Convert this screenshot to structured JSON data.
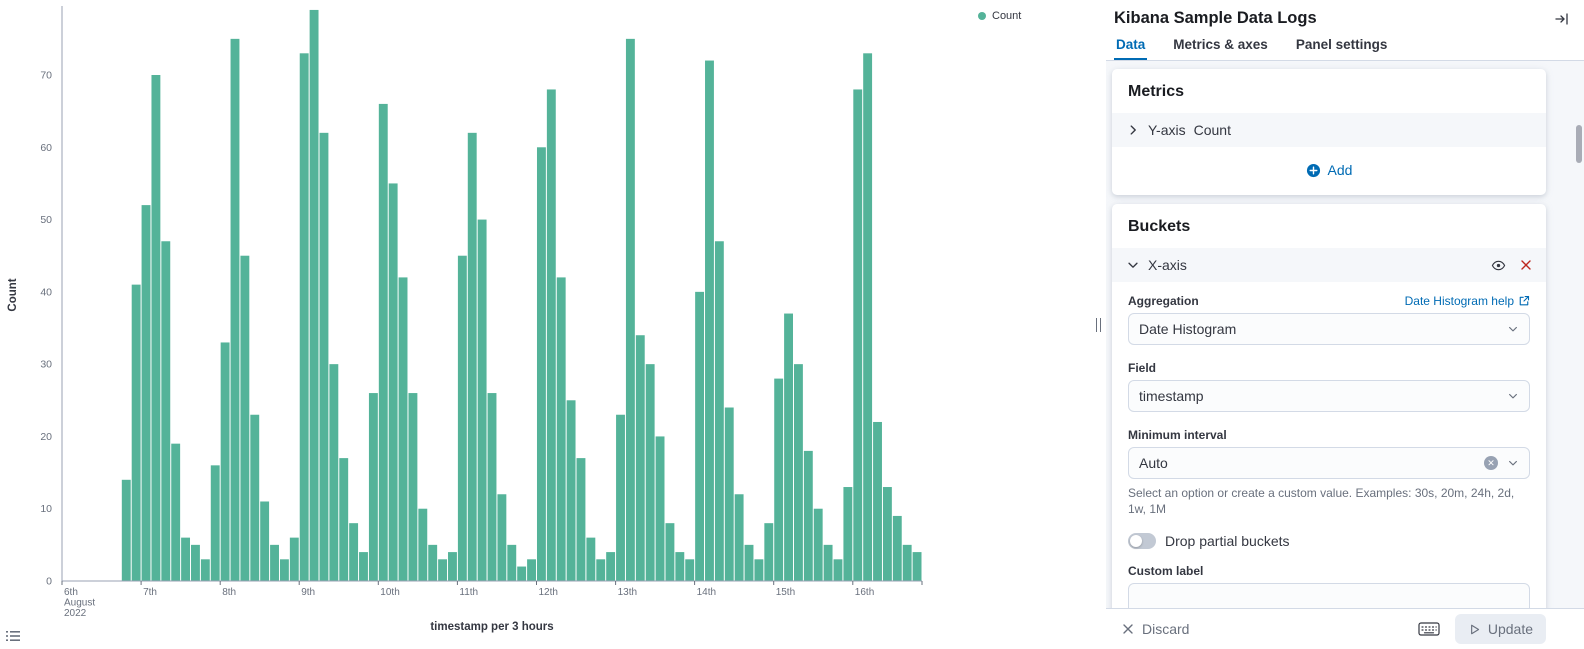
{
  "chart": {
    "legend": {
      "label": "Count",
      "dot_color": "#54B399"
    },
    "y_axis_title": "Count",
    "x_axis_title": "timestamp per 3 hours"
  },
  "chart_data": {
    "type": "bar",
    "title": "",
    "xlabel": "timestamp per 3 hours",
    "ylabel": "Count",
    "ylim": [
      0,
      80
    ],
    "y_ticks": [
      0,
      10,
      20,
      30,
      40,
      50,
      60,
      70
    ],
    "x_tick_labels": [
      "6th August 2022",
      "7th",
      "8th",
      "9th",
      "10th",
      "11th",
      "12th",
      "13th",
      "14th",
      "15th",
      "16th"
    ],
    "bucket_interval": "3h",
    "buckets_per_tick": 8,
    "grid": false,
    "legend_position": "top-right",
    "series": [
      {
        "name": "Count",
        "color": "#54B399",
        "values": [
          0,
          0,
          0,
          0,
          0,
          0,
          14,
          41,
          52,
          70,
          47,
          19,
          6,
          5,
          3,
          16,
          33,
          75,
          45,
          23,
          11,
          5,
          3,
          6,
          73,
          79,
          62,
          30,
          17,
          8,
          4,
          26,
          66,
          55,
          42,
          26,
          10,
          5,
          3,
          4,
          45,
          62,
          50,
          26,
          12,
          5,
          2,
          3,
          60,
          68,
          42,
          25,
          17,
          6,
          3,
          4,
          23,
          75,
          34,
          30,
          20,
          8,
          4,
          3,
          40,
          72,
          47,
          24,
          12,
          5,
          3,
          8,
          28,
          37,
          30,
          18,
          10,
          5,
          3,
          13,
          68,
          73,
          22,
          13,
          9,
          5,
          4
        ]
      }
    ]
  },
  "panel": {
    "title": "Kibana Sample Data Logs",
    "tabs": [
      {
        "label": "Data",
        "active": true
      },
      {
        "label": "Metrics & axes",
        "active": false
      },
      {
        "label": "Panel settings",
        "active": false
      }
    ],
    "metrics": {
      "heading": "Metrics",
      "y_axis_row": {
        "label": "Y-axis",
        "value": "Count"
      },
      "add_label": "Add"
    },
    "buckets": {
      "heading": "Buckets",
      "x_axis_row": {
        "label": "X-axis"
      },
      "aggregation": {
        "label": "Aggregation",
        "help_link": "Date Histogram help",
        "value": "Date Histogram"
      },
      "field": {
        "label": "Field",
        "value": "timestamp"
      },
      "minimum_interval": {
        "label": "Minimum interval",
        "value": "Auto",
        "help_text": "Select an option or create a custom value. Examples: 30s, 20m, 24h, 2d, 1w, 1M"
      },
      "drop_partial_buckets": {
        "label": "Drop partial buckets",
        "enabled": false
      },
      "custom_label": {
        "label": "Custom label",
        "value": ""
      }
    },
    "footer": {
      "discard_label": "Discard",
      "update_label": "Update"
    }
  },
  "colors": {
    "primary": "#006BB4",
    "series_green": "#54B399",
    "danger": "#BD271E",
    "text": "#343741",
    "subdued": "#69707D",
    "border": "#D3DAE6"
  }
}
